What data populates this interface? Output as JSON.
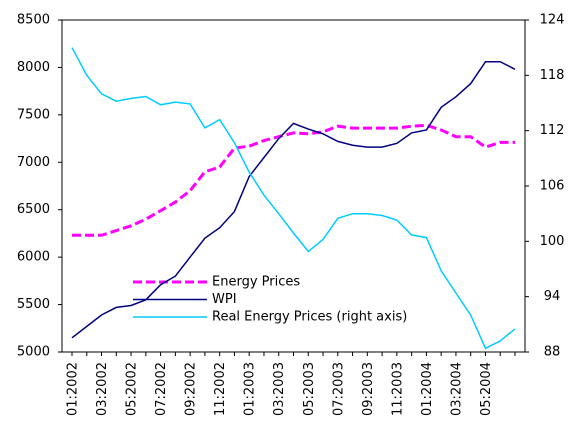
{
  "chart_data": {
    "type": "line",
    "categories": [
      "01:2002",
      null,
      "03:2002",
      null,
      "05:2002",
      null,
      "07:2002",
      null,
      "09:2002",
      null,
      "11:2002",
      null,
      "01:2003",
      null,
      "03:2003",
      null,
      "05:2003",
      null,
      "07:2003",
      null,
      "09:2003",
      null,
      "11:2003",
      null,
      "01:2004",
      null,
      "03:2004",
      null,
      "05:2004",
      null,
      null
    ],
    "ylim": [
      5000,
      8500
    ],
    "yticks": [
      5000,
      5500,
      6000,
      6500,
      7000,
      7500,
      8000,
      8500
    ],
    "y2lim": [
      88,
      124
    ],
    "y2ticks": [
      88,
      94,
      100,
      106,
      112,
      118,
      124
    ],
    "grid": false,
    "legend": "center-left",
    "series": [
      {
        "name": "Energy Prices",
        "color": "#ff00ff",
        "linestyle": "dashed",
        "values": [
          6230,
          6230,
          6230,
          6280,
          6330,
          6400,
          6490,
          6580,
          6700,
          6900,
          6950,
          7150,
          7170,
          7230,
          7270,
          7310,
          7300,
          7320,
          7380,
          7360,
          7360,
          7360,
          7360,
          7380,
          7390,
          7340,
          7270,
          7270,
          7160,
          7210,
          7210
        ]
      },
      {
        "name": "WPI",
        "color": "#000080",
        "linestyle": "solid",
        "values": [
          5150,
          5270,
          5390,
          5470,
          5490,
          5550,
          5710,
          5800,
          6000,
          6200,
          6310,
          6480,
          6850,
          7050,
          7250,
          7410,
          7350,
          7300,
          7220,
          7180,
          7160,
          7160,
          7200,
          7310,
          7340,
          7580,
          7690,
          7830,
          8060,
          8060,
          7980
        ]
      },
      {
        "name": "Real Energy Prices (right axis)",
        "color": "#00ccff",
        "linestyle": "solid",
        "axis": "y2",
        "values": [
          121,
          118,
          116,
          115.2,
          115.5,
          115.7,
          114.8,
          115.1,
          114.9,
          112.3,
          113.2,
          110.7,
          107.5,
          105.0,
          103.0,
          100.9,
          98.9,
          100.2,
          102.5,
          103.0,
          103.0,
          102.8,
          102.3,
          100.7,
          100.4,
          96.8,
          94.4,
          92.0,
          88.4,
          89.2,
          90.5
        ]
      }
    ]
  }
}
